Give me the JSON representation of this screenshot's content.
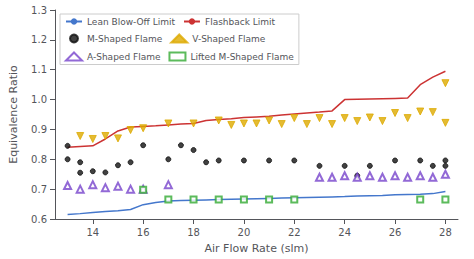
{
  "chart_data": {
    "type": "scatter",
    "xlabel": "Air Flow Rate (slm)",
    "ylabel": "Equivalence Ratio",
    "xlim": [
      12.5,
      28.5
    ],
    "ylim": [
      0.6,
      1.3
    ],
    "xticks": [
      14,
      16,
      18,
      20,
      22,
      24,
      26,
      28
    ],
    "yticks": [
      0.6,
      0.7,
      0.8,
      0.9,
      {
        "value": 1,
        "label": "1.0"
      },
      1.1,
      1.2,
      1.3
    ],
    "grid": false,
    "legend": "upper left",
    "series": [
      {
        "name": "Lean Blow-Off Limit",
        "type": "line",
        "line_style": "solid",
        "color": "#4477cc",
        "x": [
          13,
          13.5,
          14,
          14.5,
          15,
          15.5,
          16,
          16.5,
          17,
          17.5,
          18,
          18.5,
          19,
          19.5,
          20,
          20.5,
          21,
          21.5,
          22,
          22.5,
          23,
          23.5,
          24,
          24.5,
          25,
          25.5,
          26,
          26.5,
          27,
          27.5,
          28
        ],
        "values": [
          0.615,
          0.618,
          0.622,
          0.625,
          0.628,
          0.632,
          0.648,
          0.655,
          0.66,
          0.662,
          0.663,
          0.664,
          0.665,
          0.666,
          0.667,
          0.668,
          0.669,
          0.67,
          0.671,
          0.672,
          0.673,
          0.674,
          0.675,
          0.677,
          0.678,
          0.679,
          0.681,
          0.682,
          0.683,
          0.685,
          0.692
        ]
      },
      {
        "name": "Flashback Limit",
        "type": "line",
        "line_style": "solid",
        "color": "#cc3333",
        "x": [
          13,
          13.5,
          14,
          14.5,
          15,
          15.5,
          16,
          16.5,
          17,
          17.5,
          18,
          18.5,
          19,
          19.5,
          20,
          20.5,
          21,
          21.5,
          22,
          22.5,
          23,
          23.5,
          24,
          24.5,
          25,
          25.5,
          26,
          26.5,
          27,
          27.5,
          28
        ],
        "values": [
          0.84,
          0.843,
          0.845,
          0.868,
          0.895,
          0.908,
          0.91,
          0.912,
          0.915,
          0.918,
          0.92,
          0.93,
          0.933,
          0.936,
          0.94,
          0.942,
          0.944,
          0.948,
          0.952,
          0.955,
          0.958,
          0.962,
          1.0,
          1.001,
          1.002,
          1.003,
          1.004,
          1.005,
          1.05,
          1.075,
          1.095
        ]
      },
      {
        "name": "M-Shaped Flame",
        "type": "scatter",
        "marker": "circle",
        "color": "#111111",
        "x": [
          13,
          13,
          13.5,
          13.5,
          14,
          14.5,
          15,
          15.5,
          16,
          17,
          17.5,
          18,
          18.5,
          19,
          20,
          21,
          22,
          23,
          24,
          24.5,
          25,
          26,
          27,
          27.5,
          28,
          28
        ],
        "values": [
          0.845,
          0.8,
          0.79,
          0.755,
          0.76,
          0.756,
          0.78,
          0.79,
          0.847,
          0.8,
          0.847,
          0.831,
          0.79,
          0.796,
          0.796,
          0.796,
          0.796,
          0.778,
          0.778,
          0.745,
          0.778,
          0.796,
          0.796,
          0.778,
          0.796,
          0.778
        ]
      },
      {
        "name": "V-Shaped Flame",
        "type": "scatter",
        "marker": "triangle-down",
        "color": "#ddaa00",
        "x": [
          13.5,
          14,
          14.5,
          15,
          15.5,
          16,
          17,
          18,
          19,
          19.5,
          20,
          20.5,
          21,
          21.5,
          22,
          22.5,
          23,
          23.5,
          24,
          24.5,
          25,
          25.5,
          26,
          26.5,
          27,
          27.5,
          28,
          28
        ],
        "values": [
          0.878,
          0.868,
          0.878,
          0.87,
          0.898,
          0.904,
          0.92,
          0.92,
          0.93,
          0.915,
          0.92,
          0.92,
          0.93,
          0.918,
          0.938,
          0.918,
          0.938,
          0.918,
          0.938,
          0.928,
          0.94,
          0.928,
          0.955,
          0.938,
          0.96,
          0.958,
          1.055,
          0.922
        ]
      },
      {
        "name": "A-Shaped Flame",
        "type": "scatter",
        "marker": "triangle-open",
        "color": "#7744cc",
        "x": [
          13,
          13.5,
          14,
          14.5,
          15,
          15.5,
          16,
          17,
          23,
          23.5,
          24,
          24.5,
          25,
          25.5,
          26,
          26.5,
          27,
          27.5,
          28
        ],
        "values": [
          0.712,
          0.7,
          0.715,
          0.705,
          0.71,
          0.7,
          0.7,
          0.715,
          0.74,
          0.74,
          0.745,
          0.74,
          0.745,
          0.74,
          0.745,
          0.74,
          0.745,
          0.74,
          0.75
        ]
      },
      {
        "name": "Lifted M-Shaped Flame",
        "type": "scatter",
        "marker": "square-open",
        "color": "#33aa33",
        "x": [
          16,
          17,
          18,
          19,
          20,
          21,
          22,
          27,
          28
        ],
        "values": [
          0.698,
          0.665,
          0.665,
          0.665,
          0.665,
          0.665,
          0.665,
          0.665,
          0.665
        ]
      }
    ]
  }
}
